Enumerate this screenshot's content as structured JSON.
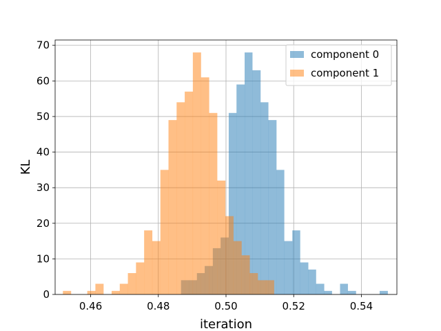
{
  "chart_data": {
    "type": "bar",
    "title": "",
    "xlabel": "iteration",
    "ylabel": "KL",
    "xlim": [
      0.4495,
      0.5505
    ],
    "ylim": [
      0,
      71.5
    ],
    "xticks": [
      0.46,
      0.48,
      0.5,
      0.52,
      0.54
    ],
    "xtick_labels": [
      "0.46",
      "0.48",
      "0.50",
      "0.52",
      "0.54"
    ],
    "yticks": [
      0,
      10,
      20,
      30,
      40,
      50,
      60,
      70
    ],
    "ytick_labels": [
      "0",
      "10",
      "20",
      "30",
      "40",
      "50",
      "60",
      "70"
    ],
    "grid": true,
    "legend_position": "top-right",
    "series": [
      {
        "name": "component 0",
        "color": "#1f77b4",
        "opacity": 0.5,
        "bins": [
          [
            0.4867,
            0.489,
            4
          ],
          [
            0.489,
            0.4914,
            4
          ],
          [
            0.4914,
            0.4937,
            6
          ],
          [
            0.4937,
            0.4961,
            8
          ],
          [
            0.4961,
            0.4984,
            13
          ],
          [
            0.4984,
            0.5008,
            16
          ],
          [
            0.5008,
            0.5031,
            51
          ],
          [
            0.5031,
            0.5055,
            59
          ],
          [
            0.5055,
            0.5078,
            68
          ],
          [
            0.5078,
            0.5102,
            63
          ],
          [
            0.5102,
            0.5125,
            54
          ],
          [
            0.5125,
            0.5149,
            49
          ],
          [
            0.5149,
            0.5172,
            35
          ],
          [
            0.5172,
            0.5196,
            15
          ],
          [
            0.5196,
            0.5219,
            18
          ],
          [
            0.5219,
            0.5243,
            9
          ],
          [
            0.5243,
            0.5266,
            7
          ],
          [
            0.5266,
            0.529,
            3
          ],
          [
            0.529,
            0.5313,
            1
          ],
          [
            0.5313,
            0.5337,
            0
          ],
          [
            0.5337,
            0.536,
            3
          ],
          [
            0.536,
            0.5384,
            1
          ],
          [
            0.5384,
            0.5407,
            0
          ],
          [
            0.5407,
            0.5431,
            0
          ],
          [
            0.5431,
            0.5454,
            0
          ],
          [
            0.5454,
            0.5478,
            1
          ]
        ]
      },
      {
        "name": "component 1",
        "color": "#ff7f0e",
        "opacity": 0.5,
        "bins": [
          [
            0.4518,
            0.4542,
            1
          ],
          [
            0.4542,
            0.4566,
            0
          ],
          [
            0.4566,
            0.459,
            0
          ],
          [
            0.459,
            0.4614,
            1
          ],
          [
            0.4614,
            0.4638,
            3
          ],
          [
            0.4638,
            0.4662,
            0
          ],
          [
            0.4662,
            0.4686,
            1
          ],
          [
            0.4686,
            0.471,
            3
          ],
          [
            0.471,
            0.4734,
            6
          ],
          [
            0.4734,
            0.4758,
            9
          ],
          [
            0.4758,
            0.4782,
            18
          ],
          [
            0.4782,
            0.4806,
            15
          ],
          [
            0.4806,
            0.483,
            35
          ],
          [
            0.483,
            0.4854,
            49
          ],
          [
            0.4854,
            0.4878,
            54
          ],
          [
            0.4878,
            0.4902,
            57
          ],
          [
            0.4902,
            0.4926,
            68
          ],
          [
            0.4926,
            0.495,
            61
          ],
          [
            0.495,
            0.4974,
            51
          ],
          [
            0.4974,
            0.4998,
            32
          ],
          [
            0.4998,
            0.5022,
            22
          ],
          [
            0.5022,
            0.5046,
            15
          ],
          [
            0.5046,
            0.507,
            11
          ],
          [
            0.507,
            0.5094,
            6
          ],
          [
            0.5094,
            0.5118,
            4
          ],
          [
            0.5118,
            0.5142,
            4
          ]
        ]
      }
    ]
  }
}
